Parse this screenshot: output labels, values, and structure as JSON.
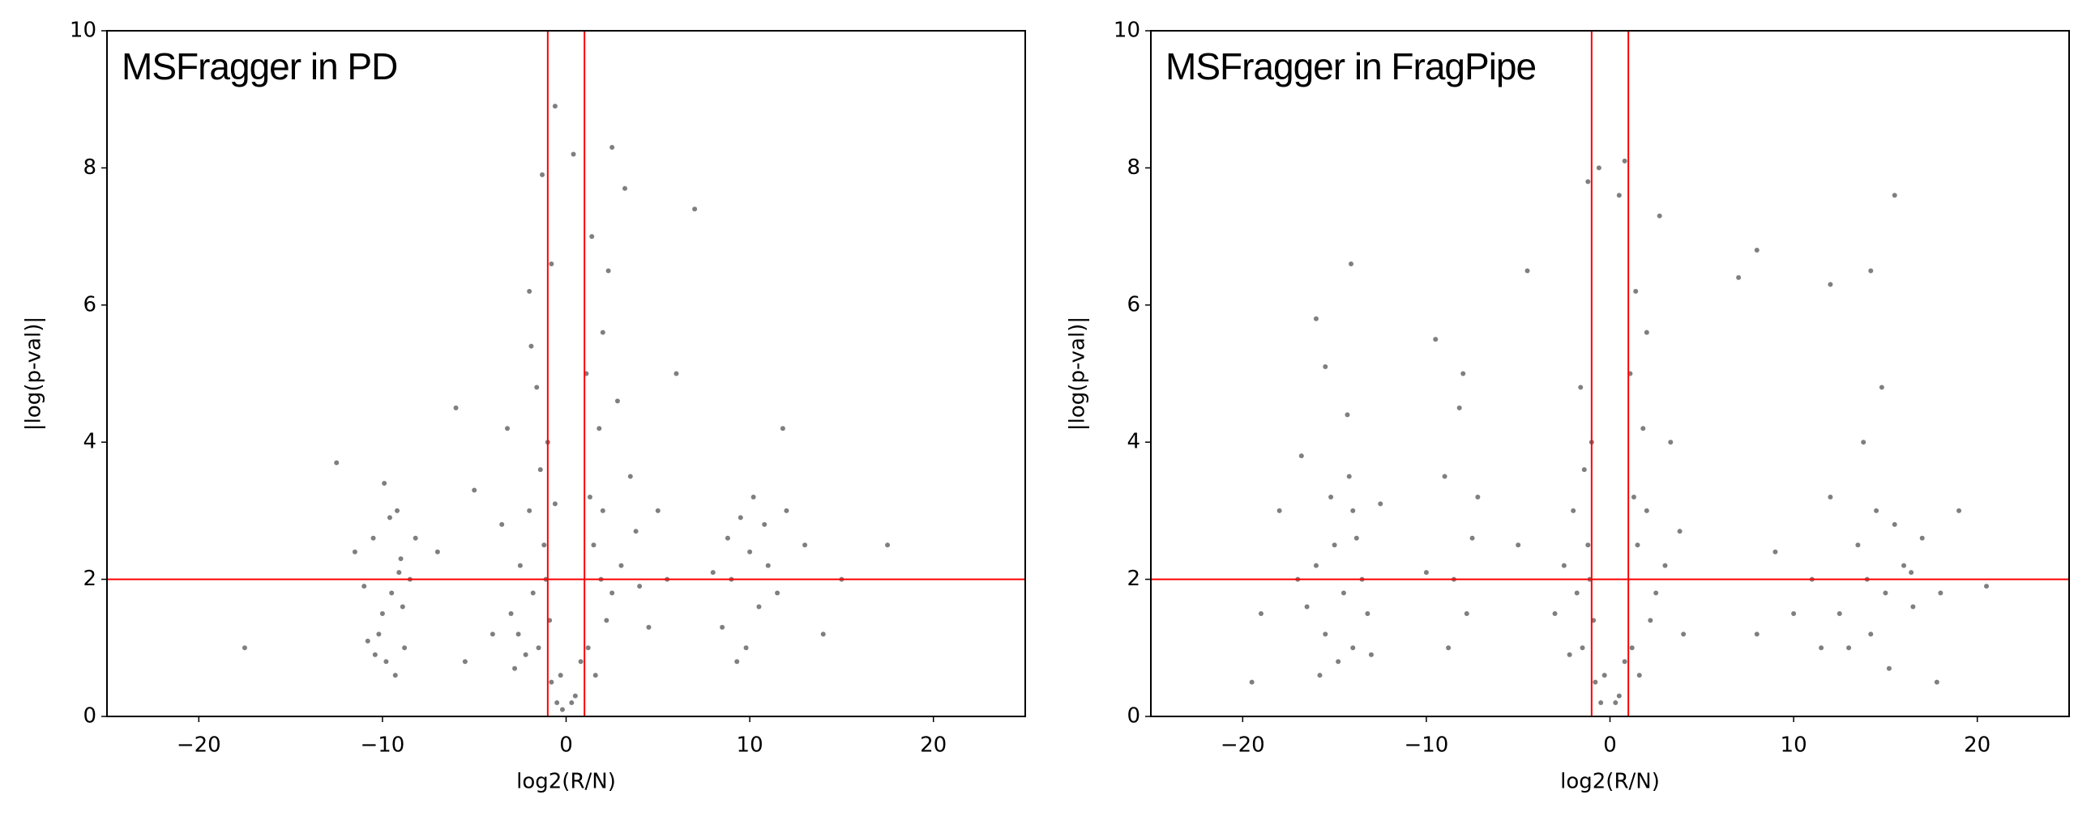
{
  "chart_data": [
    {
      "type": "scatter",
      "title": "MSFragger in PD",
      "x_label": "log2(R/N)",
      "y_label": "|log(p-val)|",
      "color": "#000000",
      "line_color": "#ff0000",
      "xlim": [
        -25,
        25
      ],
      "ylim": [
        0,
        10
      ],
      "xticks": [
        {
          "value": -20,
          "label": "−20"
        },
        {
          "value": -10,
          "label": "−10"
        },
        0,
        10,
        20
      ],
      "yticks": [
        0,
        2,
        4,
        6,
        8,
        10
      ],
      "vlines": [
        -1,
        1
      ],
      "hline": 2,
      "x": [
        -10.2,
        -9.5,
        -9.0,
        -10.5,
        -8.8,
        -9.8,
        -11.0,
        -9.2,
        -8.5,
        -10.0,
        -9.6,
        -10.8,
        -8.9,
        -9.3,
        -11.5,
        -9.9,
        -8.2,
        -10.4,
        -9.1,
        -12.5,
        -1.5,
        -1.2,
        -2.0,
        -0.8,
        -1.8,
        -2.5,
        -1.0,
        -0.5,
        -3.0,
        -1.4,
        -2.2,
        -0.9,
        -1.6,
        -3.5,
        -0.3,
        -2.8,
        -1.1,
        -4.0,
        -1.9,
        -0.6,
        -5.0,
        -6.0,
        -3.2,
        -2.6,
        -0.2,
        -1.3,
        -0.8,
        -2.0,
        -7.0,
        -5.5,
        1.2,
        1.5,
        2.0,
        0.5,
        1.8,
        2.5,
        3.0,
        0.8,
        1.1,
        2.2,
        3.5,
        1.6,
        4.0,
        2.8,
        1.3,
        0.3,
        2.0,
        3.8,
        4.5,
        1.9,
        2.5,
        3.2,
        0.4,
        -0.6,
        1.4,
        2.3,
        5.0,
        5.5,
        6.0,
        7.0,
        9.0,
        10.0,
        10.5,
        9.5,
        8.5,
        11.0,
        9.8,
        10.2,
        8.8,
        11.5,
        12.0,
        9.3,
        10.8,
        8.0,
        13.0,
        11.8,
        14.0,
        15.0,
        17.5,
        -17.5
      ],
      "values": [
        1.2,
        1.8,
        2.3,
        2.6,
        1.0,
        0.8,
        1.9,
        3.0,
        2.0,
        1.5,
        2.9,
        1.1,
        1.6,
        0.6,
        2.4,
        3.4,
        2.6,
        0.9,
        2.1,
        3.7,
        1.0,
        2.5,
        3.0,
        0.5,
        1.8,
        2.2,
        4.0,
        0.2,
        1.5,
        3.6,
        0.9,
        1.4,
        4.8,
        2.8,
        0.6,
        0.7,
        2.0,
        1.2,
        5.4,
        3.1,
        3.3,
        4.5,
        4.2,
        1.2,
        0.1,
        7.9,
        6.6,
        6.2,
        2.4,
        0.8,
        1.0,
        2.5,
        3.0,
        0.3,
        4.2,
        1.8,
        2.2,
        0.8,
        5.0,
        1.4,
        3.5,
        0.6,
        1.9,
        4.6,
        3.2,
        0.2,
        5.6,
        2.7,
        1.3,
        2.0,
        8.3,
        7.7,
        8.2,
        8.9,
        7.0,
        6.5,
        3.0,
        2.0,
        5.0,
        7.4,
        2.0,
        2.4,
        1.6,
        2.9,
        1.3,
        2.2,
        1.0,
        3.2,
        2.6,
        1.8,
        3.0,
        0.8,
        2.8,
        2.1,
        2.5,
        4.2,
        1.2,
        2.0,
        2.5,
        1.0
      ]
    },
    {
      "type": "scatter",
      "title": "MSFragger in FragPipe",
      "x_label": "log2(R/N)",
      "y_label": "|log(p-val)|",
      "color": "#000000",
      "line_color": "#ff0000",
      "xlim": [
        -25,
        25
      ],
      "ylim": [
        0,
        10
      ],
      "xticks": [
        {
          "value": -20,
          "label": "−20"
        },
        {
          "value": -10,
          "label": "−10"
        },
        0,
        10,
        20
      ],
      "yticks": [
        0,
        2,
        4,
        6,
        8,
        10
      ],
      "vlines": [
        -1,
        1
      ],
      "hline": 2,
      "x": [
        -14.5,
        -15.0,
        -14.0,
        -15.5,
        -13.5,
        -14.8,
        -16.0,
        -14.2,
        -13.2,
        -15.2,
        -16.5,
        -14.0,
        -13.8,
        -15.8,
        -17.0,
        -14.3,
        -15.5,
        -16.0,
        -13.0,
        -14.1,
        -18.0,
        -19.0,
        -19.5,
        -12.5,
        -16.8,
        -8.5,
        -9.0,
        -7.8,
        -8.2,
        -9.5,
        -7.5,
        -8.8,
        -7.2,
        -10.0,
        -8.0,
        -1.5,
        -1.2,
        -2.0,
        -0.8,
        -1.8,
        -2.5,
        -1.0,
        -0.5,
        -3.0,
        -1.4,
        -2.2,
        -0.9,
        -1.6,
        -0.3,
        -1.1,
        -1.2,
        -0.6,
        0.5,
        -4.5,
        -5.0,
        1.2,
        1.5,
        2.0,
        0.5,
        1.8,
        2.5,
        3.0,
        0.8,
        1.1,
        2.2,
        1.6,
        1.3,
        0.3,
        2.0,
        3.8,
        1.4,
        0.8,
        2.7,
        4.0,
        3.3,
        14.0,
        13.5,
        15.0,
        14.5,
        12.5,
        16.0,
        13.0,
        15.5,
        14.2,
        16.5,
        11.0,
        10.0,
        12.0,
        17.0,
        18.0,
        19.0,
        11.5,
        13.8,
        15.2,
        17.8,
        9.0,
        8.0,
        20.5,
        16.4,
        14.8,
        15.5,
        14.2,
        12.0,
        8.0,
        7.0
      ],
      "values": [
        1.8,
        2.5,
        3.0,
        1.2,
        2.0,
        0.8,
        2.2,
        3.5,
        1.5,
        3.2,
        1.6,
        1.0,
        2.6,
        0.6,
        2.0,
        4.4,
        5.1,
        5.8,
        0.9,
        6.6,
        3.0,
        1.5,
        0.5,
        3.1,
        3.8,
        2.0,
        3.5,
        1.5,
        4.5,
        5.5,
        2.6,
        1.0,
        3.2,
        2.1,
        5.0,
        1.0,
        2.5,
        3.0,
        0.5,
        1.8,
        2.2,
        4.0,
        0.2,
        1.5,
        3.6,
        0.9,
        1.4,
        4.8,
        0.6,
        2.0,
        7.8,
        8.0,
        7.6,
        6.5,
        2.5,
        1.0,
        2.5,
        3.0,
        0.3,
        4.2,
        1.8,
        2.2,
        0.8,
        5.0,
        1.4,
        0.6,
        3.2,
        0.2,
        5.6,
        2.7,
        6.2,
        8.1,
        7.3,
        1.2,
        4.0,
        2.0,
        2.5,
        1.8,
        3.0,
        1.5,
        2.2,
        1.0,
        2.8,
        1.2,
        1.6,
        2.0,
        1.5,
        3.2,
        2.6,
        1.8,
        3.0,
        1.0,
        4.0,
        0.7,
        0.5,
        2.4,
        1.2,
        1.9,
        2.1,
        4.8,
        7.6,
        6.5,
        6.3,
        6.8,
        6.4
      ]
    }
  ]
}
